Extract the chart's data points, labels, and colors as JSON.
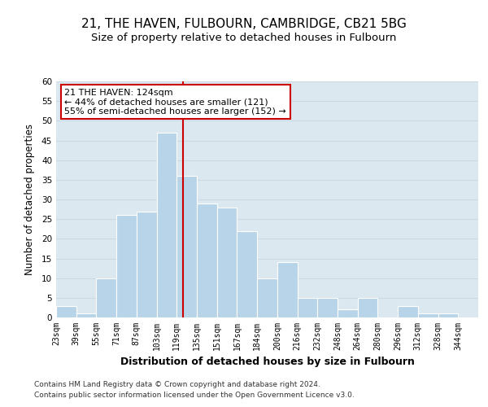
{
  "title": "21, THE HAVEN, FULBOURN, CAMBRIDGE, CB21 5BG",
  "subtitle": "Size of property relative to detached houses in Fulbourn",
  "xlabel": "Distribution of detached houses by size in Fulbourn",
  "ylabel": "Number of detached properties",
  "footnote1": "Contains HM Land Registry data © Crown copyright and database right 2024.",
  "footnote2": "Contains public sector information licensed under the Open Government Licence v3.0.",
  "bin_labels": [
    "23sqm",
    "39sqm",
    "55sqm",
    "71sqm",
    "87sqm",
    "103sqm",
    "119sqm",
    "135sqm",
    "151sqm",
    "167sqm",
    "184sqm",
    "200sqm",
    "216sqm",
    "232sqm",
    "248sqm",
    "264sqm",
    "280sqm",
    "296sqm",
    "312sqm",
    "328sqm",
    "344sqm"
  ],
  "bar_heights": [
    3,
    1,
    10,
    26,
    27,
    47,
    36,
    29,
    28,
    22,
    10,
    14,
    5,
    5,
    2,
    5,
    0,
    3,
    1,
    1
  ],
  "bar_color": "#b8d4e8",
  "bar_edge_color": "#ffffff",
  "highlight_line_color": "#cc0000",
  "annotation_line1": "21 THE HAVEN: 124sqm",
  "annotation_line2": "← 44% of detached houses are smaller (121)",
  "annotation_line3": "55% of semi-detached houses are larger (152) →",
  "annotation_box_edgecolor": "#cc0000",
  "ylim": [
    0,
    60
  ],
  "yticks": [
    0,
    5,
    10,
    15,
    20,
    25,
    30,
    35,
    40,
    45,
    50,
    55,
    60
  ],
  "grid_color": "#ccd8e4",
  "background_color": "#dce8f0",
  "fig_background": "#ffffff",
  "title_fontsize": 11,
  "subtitle_fontsize": 9.5,
  "xlabel_fontsize": 9,
  "ylabel_fontsize": 8.5,
  "tick_fontsize": 7,
  "footnote_fontsize": 6.5,
  "annotation_fontsize": 8
}
